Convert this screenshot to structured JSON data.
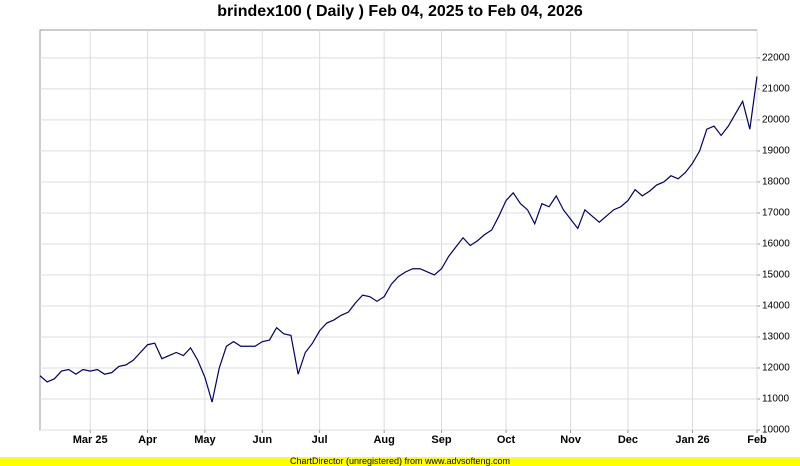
{
  "chart_data": {
    "type": "line",
    "title": "brindex100 ( Daily ) Feb 04, 2025 to Feb 04, 2026",
    "categories": [
      null,
      null,
      null,
      null,
      null,
      null,
      null,
      "Mar 25",
      null,
      null,
      null,
      null,
      null,
      null,
      null,
      "Apr",
      null,
      null,
      null,
      null,
      null,
      null,
      null,
      "May",
      null,
      null,
      null,
      null,
      null,
      null,
      null,
      "Jun",
      null,
      null,
      null,
      null,
      null,
      null,
      null,
      "Jul",
      null,
      null,
      null,
      null,
      null,
      null,
      null,
      null,
      "Aug",
      null,
      null,
      null,
      null,
      null,
      null,
      null,
      "Sep",
      null,
      null,
      null,
      null,
      null,
      null,
      null,
      null,
      "Oct",
      null,
      null,
      null,
      null,
      null,
      null,
      null,
      null,
      "Nov",
      null,
      null,
      null,
      null,
      null,
      null,
      null,
      "Dec",
      null,
      null,
      null,
      null,
      null,
      null,
      null,
      null,
      "Jan 26",
      null,
      null,
      null,
      null,
      null,
      null,
      null,
      null,
      "Feb"
    ],
    "values": [
      11750,
      11550,
      11650,
      11900,
      11950,
      11800,
      11950,
      11900,
      11950,
      11800,
      11850,
      12050,
      12100,
      12250,
      12500,
      12750,
      12800,
      12300,
      12400,
      12500,
      12400,
      12650,
      12250,
      11700,
      10900,
      12000,
      12700,
      12850,
      12700,
      12700,
      12700,
      12850,
      12900,
      13300,
      13100,
      13050,
      11800,
      12500,
      12800,
      13200,
      13450,
      13550,
      13700,
      13800,
      14100,
      14350,
      14300,
      14150,
      14300,
      14700,
      14950,
      15100,
      15200,
      15200,
      15100,
      15000,
      15200,
      15600,
      15900,
      16200,
      15950,
      16100,
      16300,
      16450,
      16900,
      17400,
      17650,
      17300,
      17100,
      16650,
      17300,
      17200,
      17550,
      17100,
      16800,
      16500,
      17100,
      16900,
      16700,
      16900,
      17100,
      17200,
      17400,
      17750,
      17550,
      17700,
      17900,
      18000,
      18200,
      18100,
      18300,
      18600,
      19000,
      19700,
      19800,
      19500,
      19800,
      20200,
      20600,
      19700,
      21400
    ],
    "color": "#000066",
    "ylim": [
      10000,
      22900
    ],
    "yticks": [
      10000,
      11000,
      12000,
      13000,
      14000,
      15000,
      16000,
      17000,
      18000,
      19000,
      20000,
      21000,
      22000
    ],
    "grid": true
  },
  "footer": "ChartDirector (unregistered) from www.advsofteng.com"
}
